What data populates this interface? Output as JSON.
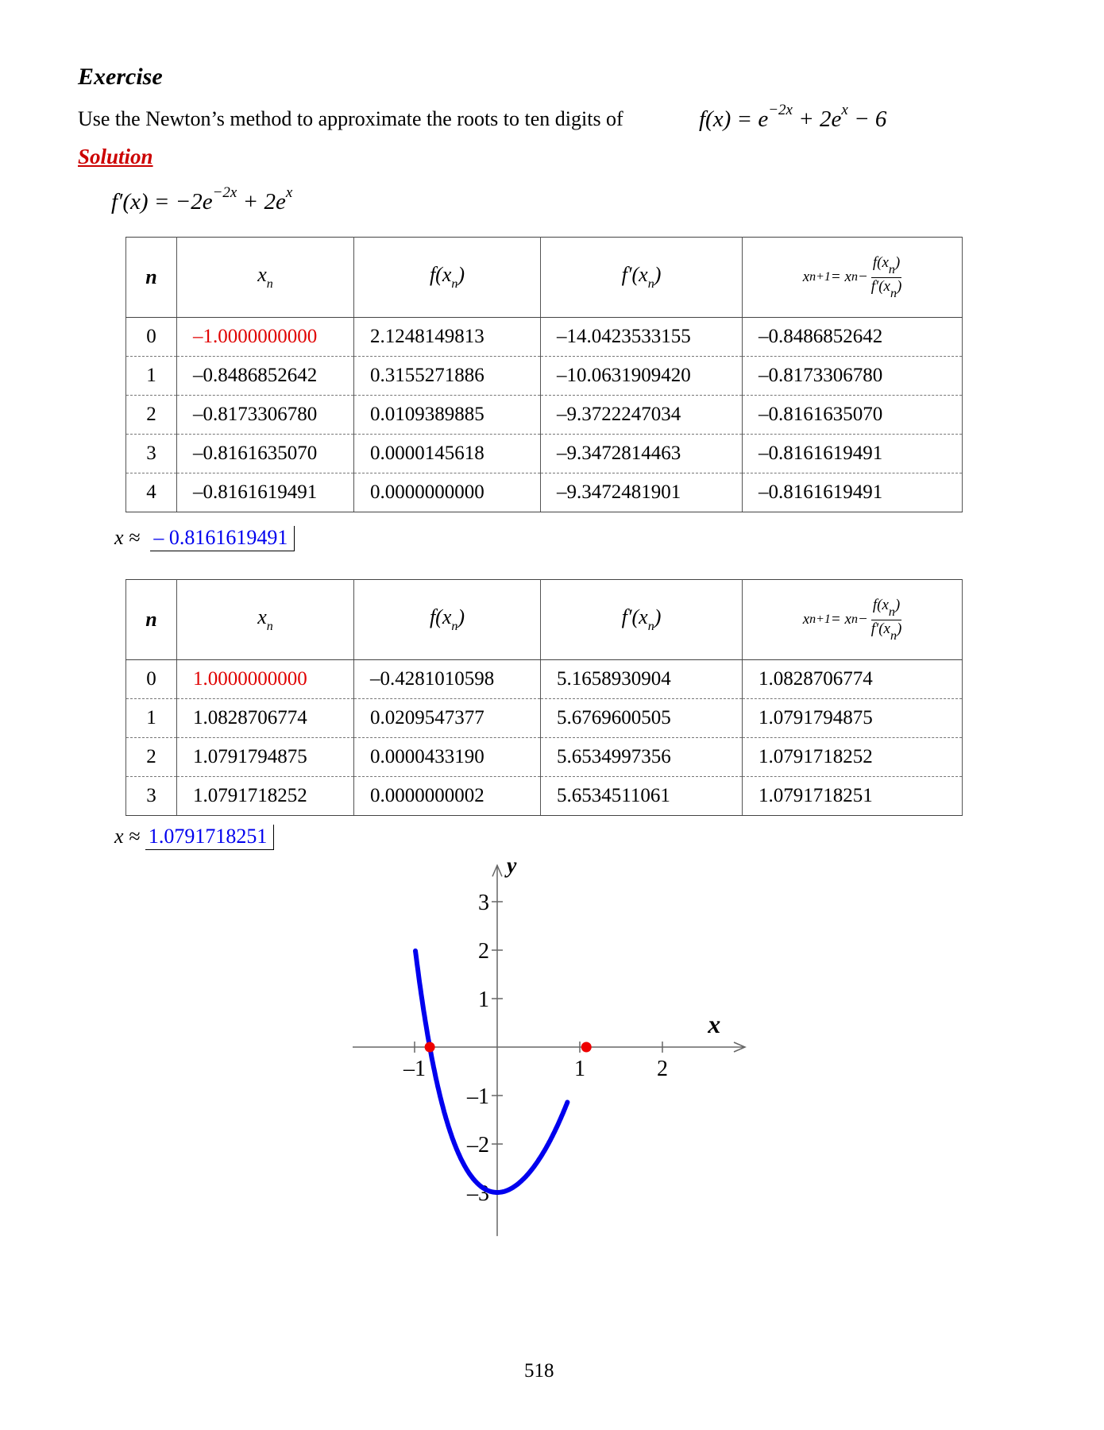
{
  "heading": "Exercise",
  "prompt": "Use the Newton’s method to approximate the roots to ten digits of",
  "function": {
    "lhs": "f(x) = e",
    "exp1": "−2x",
    "mid": " + 2e",
    "exp2": "x",
    "tail": " − 6"
  },
  "solution_label": "Solution",
  "derivative": {
    "lhs": "f′(x) = −2e",
    "exp1": "−2x",
    "mid": " + 2e",
    "exp2": "x"
  },
  "table_headers": {
    "n": "n",
    "xn": "x",
    "xn_sub": "n",
    "fxn": "f(x",
    "fxn_sub": "n",
    "fxn_close": ")",
    "fpxn": "f′(x",
    "fpxn_sub": "n",
    "fpxn_close": ")",
    "next": "x",
    "next_sub": "n+1",
    "next_eq": " = x",
    "next_eq_sub": "n",
    "next_minus": " − ",
    "frac_num": "f(x",
    "frac_den": "f′(x",
    "frac_sub": "n",
    "frac_close": ")"
  },
  "table1": {
    "rows": [
      {
        "n": "0",
        "xn": "–1.0000000000",
        "fxn": "2.1248149813",
        "fpxn": "–14.0423533155",
        "next": "–0.8486852642"
      },
      {
        "n": "1",
        "xn": "–0.8486852642",
        "fxn": "0.3155271886",
        "fpxn": "–10.0631909420",
        "next": "–0.8173306780"
      },
      {
        "n": "2",
        "xn": "–0.8173306780",
        "fxn": "0.0109389885",
        "fpxn": "–9.3722247034",
        "next": "–0.8161635070"
      },
      {
        "n": "3",
        "xn": "–0.8161635070",
        "fxn": "0.0000145618",
        "fpxn": "–9.3472814463",
        "next": "–0.8161619491"
      },
      {
        "n": "4",
        "xn": "–0.8161619491",
        "fxn": "0.0000000000",
        "fpxn": "–9.3472481901",
        "next": "–0.8161619491"
      }
    ],
    "result_label": "x ≈",
    "result_value": "– 0.8161619491"
  },
  "table2": {
    "rows": [
      {
        "n": "0",
        "xn": "1.0000000000",
        "fxn": "–0.4281010598",
        "fpxn": "5.1658930904",
        "next": "1.0828706774"
      },
      {
        "n": "1",
        "xn": "1.0828706774",
        "fxn": "0.0209547377",
        "fpxn": "5.6769600505",
        "next": "1.0791794875"
      },
      {
        "n": "2",
        "xn": "1.0791794875",
        "fxn": "0.0000433190",
        "fpxn": "5.6534997356",
        "next": "1.0791718252"
      },
      {
        "n": "3",
        "xn": "1.0791718252",
        "fxn": "0.0000000002",
        "fpxn": "5.6534511061",
        "next": "1.0791718251"
      }
    ],
    "result_label": "x ≈",
    "result_value": "1.0791718251"
  },
  "graph": {
    "x_axis_label": "x",
    "y_axis_label": "y",
    "x_ticks": [
      "–1",
      "1",
      "2"
    ],
    "y_ticks": [
      "3",
      "2",
      "1",
      "–1",
      "–2",
      "–3"
    ],
    "curve_color": "#0000ee",
    "root_color": "#ee0000",
    "roots": [
      -0.8161619491,
      1.0791718251
    ]
  },
  "page_number": "518"
}
